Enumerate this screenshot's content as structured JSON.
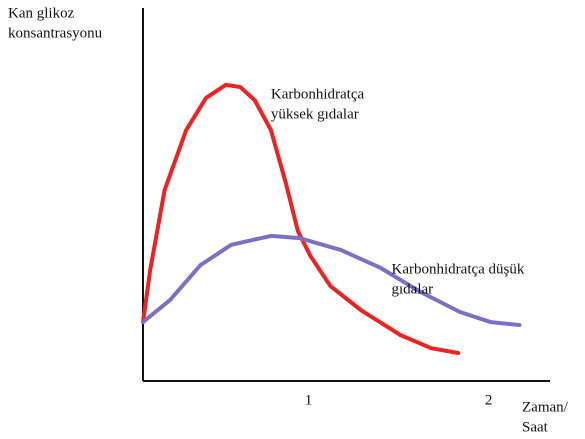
{
  "chart_data": {
    "type": "line",
    "ylabel": [
      "Kan glikoz",
      "konsantrasyonu"
    ],
    "xlabel": [
      "Zaman/",
      "Saat"
    ],
    "xlim": [
      0.07,
      2.33
    ],
    "xticks": [
      1,
      2
    ],
    "ylim": [
      0,
      10
    ],
    "series": [
      {
        "label": [
          "Karbonhidratça",
          "yüksek gıdalar"
        ],
        "color": "#ee2222",
        "x": [
          0.07,
          0.11,
          0.19,
          0.31,
          0.42,
          0.53,
          0.61,
          0.69,
          0.78,
          0.86,
          0.93,
          1.0,
          1.11,
          1.28,
          1.5,
          1.67,
          1.82
        ],
        "values": [
          1.58,
          2.98,
          5.12,
          6.73,
          7.59,
          7.94,
          7.88,
          7.53,
          6.73,
          5.36,
          4.02,
          3.35,
          2.55,
          1.9,
          1.23,
          0.88,
          0.75
        ]
      },
      {
        "label": [
          "Karbonhidratça düşük",
          "gıdalar"
        ],
        "color": "#7b70c4",
        "x": [
          0.07,
          0.22,
          0.39,
          0.56,
          0.78,
          0.94,
          1.17,
          1.39,
          1.61,
          1.83,
          2.0,
          2.16
        ],
        "values": [
          1.58,
          2.17,
          3.11,
          3.65,
          3.89,
          3.83,
          3.51,
          3.03,
          2.39,
          1.85,
          1.58,
          1.5
        ]
      }
    ]
  }
}
